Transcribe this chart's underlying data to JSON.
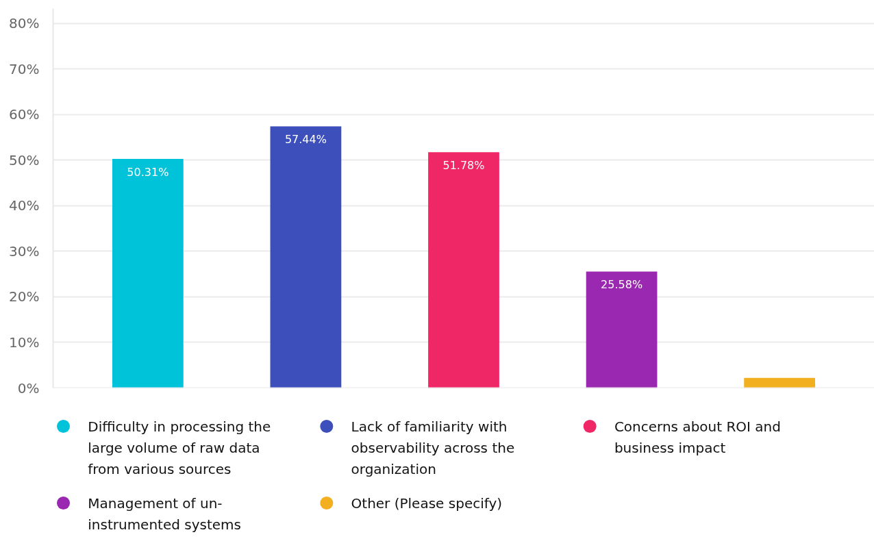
{
  "chart_data": {
    "type": "bar",
    "categories": [
      null,
      null,
      null,
      null,
      null
    ],
    "series": [
      {
        "name": "Difficulty in processing the large volume of raw data from various sources",
        "color": "#00c2d9",
        "values": [
          50.31,
          null,
          null,
          null,
          null
        ],
        "value_labels": [
          "50.31%",
          null,
          null,
          null,
          null
        ]
      },
      {
        "name": "Lack of familiarity with observability across the organization",
        "color": "#3c4fba",
        "values": [
          null,
          57.44,
          null,
          null,
          null
        ],
        "value_labels": [
          null,
          "57.44%",
          null,
          null,
          null
        ]
      },
      {
        "name": "Concerns about ROI and business impact",
        "color": "#f02766",
        "values": [
          null,
          null,
          51.78,
          null,
          null
        ],
        "value_labels": [
          null,
          null,
          "51.78%",
          null,
          null
        ]
      },
      {
        "name": "Management of un-instrumented systems",
        "color": "#9a28b0",
        "values": [
          null,
          null,
          null,
          25.58,
          null
        ],
        "value_labels": [
          null,
          null,
          null,
          "25.58%",
          null
        ]
      },
      {
        "name": "Other (Please specify)",
        "color": "#f2b021",
        "values": [
          null,
          null,
          null,
          null,
          2.2
        ],
        "value_labels": [
          null,
          null,
          null,
          null,
          null
        ]
      }
    ],
    "ylim": [
      0,
      83.3
    ],
    "yticks": [
      {
        "value": 0,
        "label": "0%"
      },
      {
        "value": 10,
        "label": "10%"
      },
      {
        "value": 20,
        "label": "20%"
      },
      {
        "value": 30,
        "label": "30%"
      },
      {
        "value": 40,
        "label": "40%"
      },
      {
        "value": 50,
        "label": "50%"
      },
      {
        "value": 60,
        "label": "60%"
      },
      {
        "value": 70,
        "label": "70%"
      },
      {
        "value": 80,
        "label": "80%"
      }
    ],
    "grid": "y",
    "legend": "bottom"
  }
}
